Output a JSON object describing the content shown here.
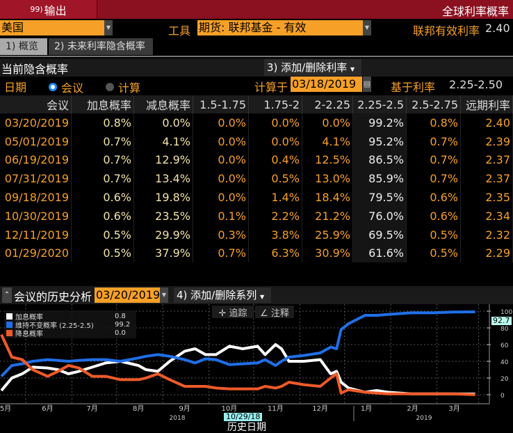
{
  "header": {
    "export_num": "99)",
    "export_label": "输出",
    "title": "全球利率概率"
  },
  "controls": {
    "country": "美国",
    "instrument_label": "工具",
    "instrument": "期货: 联邦基金 - 有效",
    "fed_rate_label": "联邦有效利率",
    "fed_rate": "2.40"
  },
  "tabs": [
    {
      "label": "1) 概览",
      "active": true
    },
    {
      "label": "2) 未来利率隐含概率",
      "active": false
    }
  ],
  "section": {
    "title": "当前隐含概率",
    "add_remove_rates": "3) 添加/删除利率",
    "date_label": "日期",
    "radio_meeting": "会议",
    "radio_calc": "计算",
    "radio_selected": "会议",
    "calc_on_label": "计算于",
    "calc_date": "03/18/2019",
    "based_on_label": "基于利率",
    "based_on_value": "2.25-2.50"
  },
  "table": {
    "columns": [
      "会议",
      "加息概率",
      "减息概率",
      "1.5-1.75",
      "1.75-2",
      "2-2.25",
      "2.25-2.5",
      "2.5-2.75",
      "远期利率"
    ],
    "rows": [
      [
        "03/20/2019",
        "0.8%",
        "0.0%",
        "0.0%",
        "0.0%",
        "0.0%",
        "99.2%",
        "0.8%",
        "2.40"
      ],
      [
        "05/01/2019",
        "0.7%",
        "4.1%",
        "0.0%",
        "0.0%",
        "4.1%",
        "95.2%",
        "0.7%",
        "2.39"
      ],
      [
        "06/19/2019",
        "0.7%",
        "12.9%",
        "0.0%",
        "0.4%",
        "12.5%",
        "86.5%",
        "0.7%",
        "2.37"
      ],
      [
        "07/31/2019",
        "0.7%",
        "13.4%",
        "0.0%",
        "0.5%",
        "13.0%",
        "85.9%",
        "0.7%",
        "2.37"
      ],
      [
        "09/18/2019",
        "0.6%",
        "19.8%",
        "0.0%",
        "1.4%",
        "18.4%",
        "79.5%",
        "0.6%",
        "2.35"
      ],
      [
        "10/30/2019",
        "0.6%",
        "23.5%",
        "0.1%",
        "2.2%",
        "21.2%",
        "76.0%",
        "0.6%",
        "2.34"
      ],
      [
        "12/11/2019",
        "0.5%",
        "29.9%",
        "0.3%",
        "3.8%",
        "25.9%",
        "69.5%",
        "0.5%",
        "2.32"
      ],
      [
        "01/29/2020",
        "0.5%",
        "37.9%",
        "0.7%",
        "6.3%",
        "30.9%",
        "61.6%",
        "0.5%",
        "2.29"
      ]
    ]
  },
  "history": {
    "title": "会议的历史分析",
    "meeting_date": "03/20/2019",
    "add_remove_series": "4) 添加/删除系列",
    "track_label": "追踪",
    "annotate_label": "注释",
    "xlabel": "历史日期",
    "crosshair_date": "10/29/18",
    "last_value_label": "92.7"
  },
  "chart_data": {
    "type": "line",
    "xlabel": "历史日期",
    "ylim": [
      0,
      100
    ],
    "yticks": [
      0,
      20,
      40,
      60,
      80,
      100
    ],
    "xticks": [
      "5月",
      "6月",
      "7月",
      "8月",
      "9月",
      "10月",
      "11月",
      "12月",
      "1月",
      "2月",
      "3月"
    ],
    "years": [
      "2018",
      "2019"
    ],
    "legend_placement": "top-left",
    "grid": true,
    "dates": [
      "2018-05-01",
      "2018-05-08",
      "2018-05-15",
      "2018-05-22",
      "2018-06-01",
      "2018-06-08",
      "2018-06-15",
      "2018-06-22",
      "2018-07-01",
      "2018-07-10",
      "2018-07-20",
      "2018-08-01",
      "2018-08-06",
      "2018-08-14",
      "2018-08-22",
      "2018-09-01",
      "2018-09-08",
      "2018-09-15",
      "2018-09-22",
      "2018-10-01",
      "2018-10-10",
      "2018-10-20",
      "2018-10-25",
      "2018-11-01",
      "2018-11-05",
      "2018-11-10",
      "2018-11-20",
      "2018-12-01",
      "2018-12-08",
      "2018-12-12",
      "2018-12-15",
      "2018-12-20",
      "2018-12-31",
      "2019-01-08",
      "2019-01-15",
      "2019-01-31",
      "2019-02-15",
      "2019-02-28",
      "2019-03-15"
    ],
    "series": [
      {
        "name": "加息概率",
        "legend_value": "0.8",
        "color": "#ffffff",
        "values": [
          5,
          20,
          25,
          33,
          32,
          30,
          25,
          28,
          33,
          38,
          40,
          35,
          30,
          28,
          40,
          52,
          55,
          48,
          48,
          58,
          55,
          58,
          48,
          60,
          55,
          40,
          40,
          42,
          25,
          28,
          15,
          8,
          3,
          5,
          3,
          1,
          1,
          1,
          0.8
        ]
      },
      {
        "name": "维持不变概率 (2.25-2.5)",
        "legend_value": "99.2",
        "color": "#1f6fe8",
        "values": [
          22,
          35,
          37,
          40,
          42,
          41,
          40,
          41,
          42,
          42,
          40,
          44,
          46,
          48,
          46,
          42,
          38,
          43,
          42,
          36,
          37,
          38,
          42,
          35,
          40,
          45,
          47,
          50,
          57,
          55,
          78,
          85,
          95,
          95,
          96,
          98,
          98,
          99,
          99.2
        ]
      },
      {
        "name": "降息概率",
        "legend_value": "0.0",
        "color": "#f05a28",
        "values": [
          72,
          45,
          42,
          30,
          22,
          28,
          35,
          32,
          22,
          22,
          18,
          18,
          20,
          25,
          18,
          10,
          10,
          10,
          8,
          7,
          7,
          7,
          10,
          8,
          10,
          15,
          12,
          10,
          20,
          25,
          2,
          6,
          3,
          2,
          1,
          1,
          1,
          1,
          0.0
        ]
      }
    ]
  }
}
